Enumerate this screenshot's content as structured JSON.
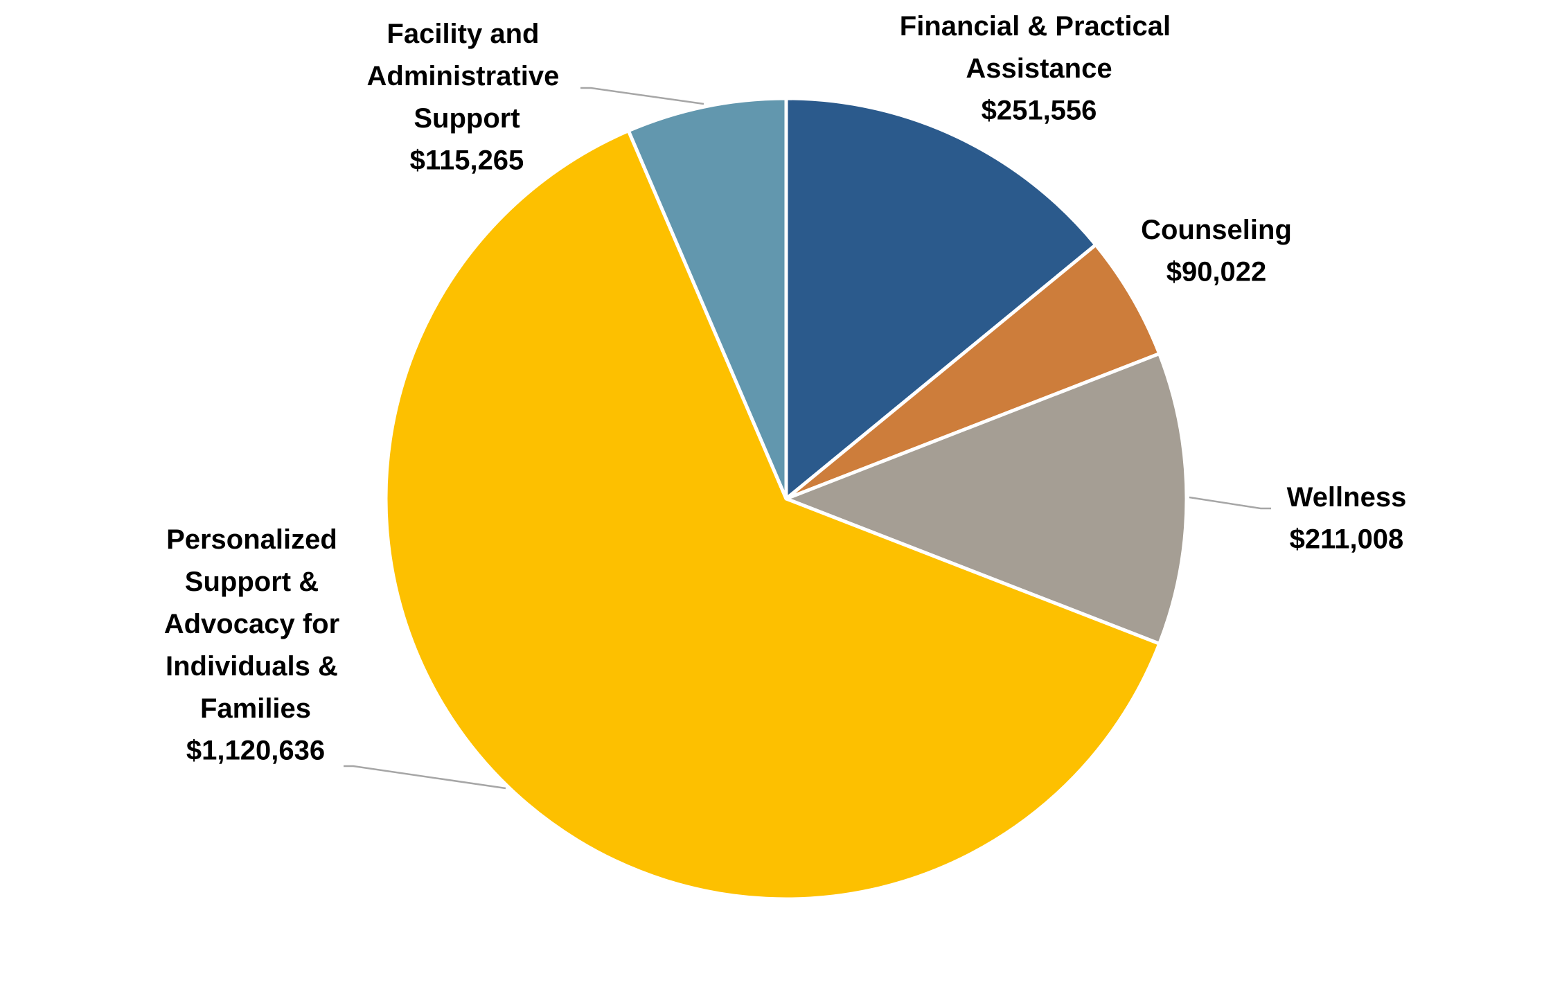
{
  "chart_data": {
    "type": "pie",
    "categories": [
      "Financial & Practical Assistance",
      "Counseling",
      "Wellness",
      "Personalized Support & Advocacy for Individuals & Families",
      "Facility and Administrative Support"
    ],
    "values": [
      251556,
      90022,
      211008,
      1120636,
      115265
    ],
    "value_labels": [
      "$251,556",
      "$90,022",
      "$211,008",
      "$1,120,636",
      "$115,265"
    ],
    "colors": [
      "#2b5a8c",
      "#cd7d3b",
      "#a59e94",
      "#fdc000",
      "#6297ae"
    ]
  }
}
